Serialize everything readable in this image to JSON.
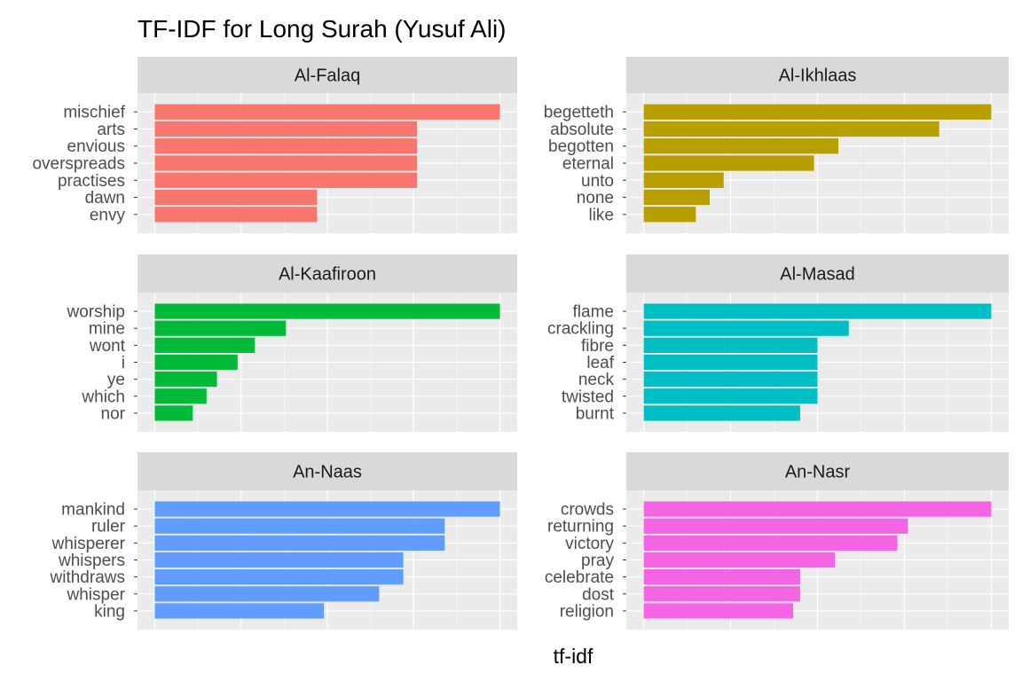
{
  "chart_data": {
    "type": "bar",
    "orientation": "horizontal",
    "title": "TF-IDF for Long Surah (Yusuf Ali)",
    "xlabel": "tf-idf",
    "ylabel": "",
    "x_tick_labels_shown": false,
    "value_note": "no x tick labels printed; values are relative to each panel's largest bar",
    "grid": true,
    "facets": [
      {
        "name": "Al-Falaq",
        "color": "#F8766D",
        "categories": [
          "mischief",
          "arts",
          "envious",
          "overspreads",
          "practises",
          "dawn",
          "envy"
        ],
        "values": [
          1.0,
          0.76,
          0.76,
          0.76,
          0.76,
          0.47,
          0.47
        ]
      },
      {
        "name": "Al-Ikhlaas",
        "color": "#B79F00",
        "categories": [
          "begetteth",
          "absolute",
          "begotten",
          "eternal",
          "unto",
          "none",
          "like"
        ],
        "values": [
          1.0,
          0.85,
          0.56,
          0.49,
          0.23,
          0.19,
          0.15
        ]
      },
      {
        "name": "Al-Kaafiroon",
        "color": "#00BA38",
        "categories": [
          "worship",
          "mine",
          "wont",
          "i",
          "ye",
          "which",
          "nor"
        ],
        "values": [
          1.0,
          0.38,
          0.29,
          0.24,
          0.18,
          0.15,
          0.11
        ]
      },
      {
        "name": "Al-Masad",
        "color": "#00BFC4",
        "categories": [
          "flame",
          "crackling",
          "fibre",
          "leaf",
          "neck",
          "twisted",
          "burnt"
        ],
        "values": [
          1.0,
          0.59,
          0.5,
          0.5,
          0.5,
          0.5,
          0.45
        ]
      },
      {
        "name": "An-Naas",
        "color": "#619CFF",
        "categories": [
          "mankind",
          "ruler",
          "whisperer",
          "whispers",
          "withdraws",
          "whisper",
          "king"
        ],
        "values": [
          1.0,
          0.84,
          0.84,
          0.72,
          0.72,
          0.65,
          0.49
        ]
      },
      {
        "name": "An-Nasr",
        "color": "#F564E3",
        "categories": [
          "crowds",
          "returning",
          "victory",
          "pray",
          "celebrate",
          "dost",
          "religion"
        ],
        "values": [
          1.0,
          0.76,
          0.73,
          0.55,
          0.45,
          0.45,
          0.43
        ]
      }
    ]
  }
}
